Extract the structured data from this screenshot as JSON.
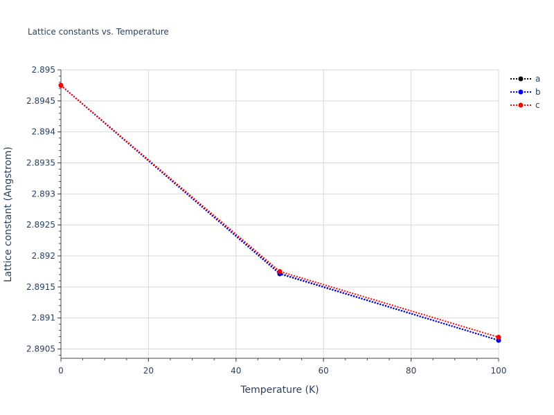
{
  "chart_data": {
    "type": "line",
    "title": "Lattice constants vs. Temperature",
    "xlabel": "Temperature (K)",
    "ylabel": "Lattice constant (Angstrom)",
    "x": [
      0,
      50,
      100
    ],
    "xlim": [
      0,
      100
    ],
    "ylim": [
      2.89035,
      2.895
    ],
    "x_ticks": [
      0,
      20,
      40,
      60,
      80,
      100
    ],
    "x_tick_labels": [
      "0",
      "20",
      "40",
      "60",
      "80",
      "100"
    ],
    "y_ticks": [
      2.8905,
      2.891,
      2.8915,
      2.892,
      2.8925,
      2.893,
      2.8935,
      2.894,
      2.8945,
      2.895
    ],
    "y_tick_labels": [
      "2.8905",
      "2.891",
      "2.8915",
      "2.892",
      "2.8925",
      "2.893",
      "2.8935",
      "2.894",
      "2.8945",
      "2.895"
    ],
    "grid": true,
    "legend_position": "top-right",
    "line_style": "dotted",
    "series": [
      {
        "name": "a",
        "color": "#000000",
        "values": [
          2.89475,
          2.89171,
          2.89064
        ]
      },
      {
        "name": "b",
        "color": "#0000ff",
        "values": [
          2.89475,
          2.89172,
          2.89064
        ]
      },
      {
        "name": "c",
        "color": "#ff0000",
        "values": [
          2.89475,
          2.89175,
          2.89069
        ]
      }
    ]
  }
}
